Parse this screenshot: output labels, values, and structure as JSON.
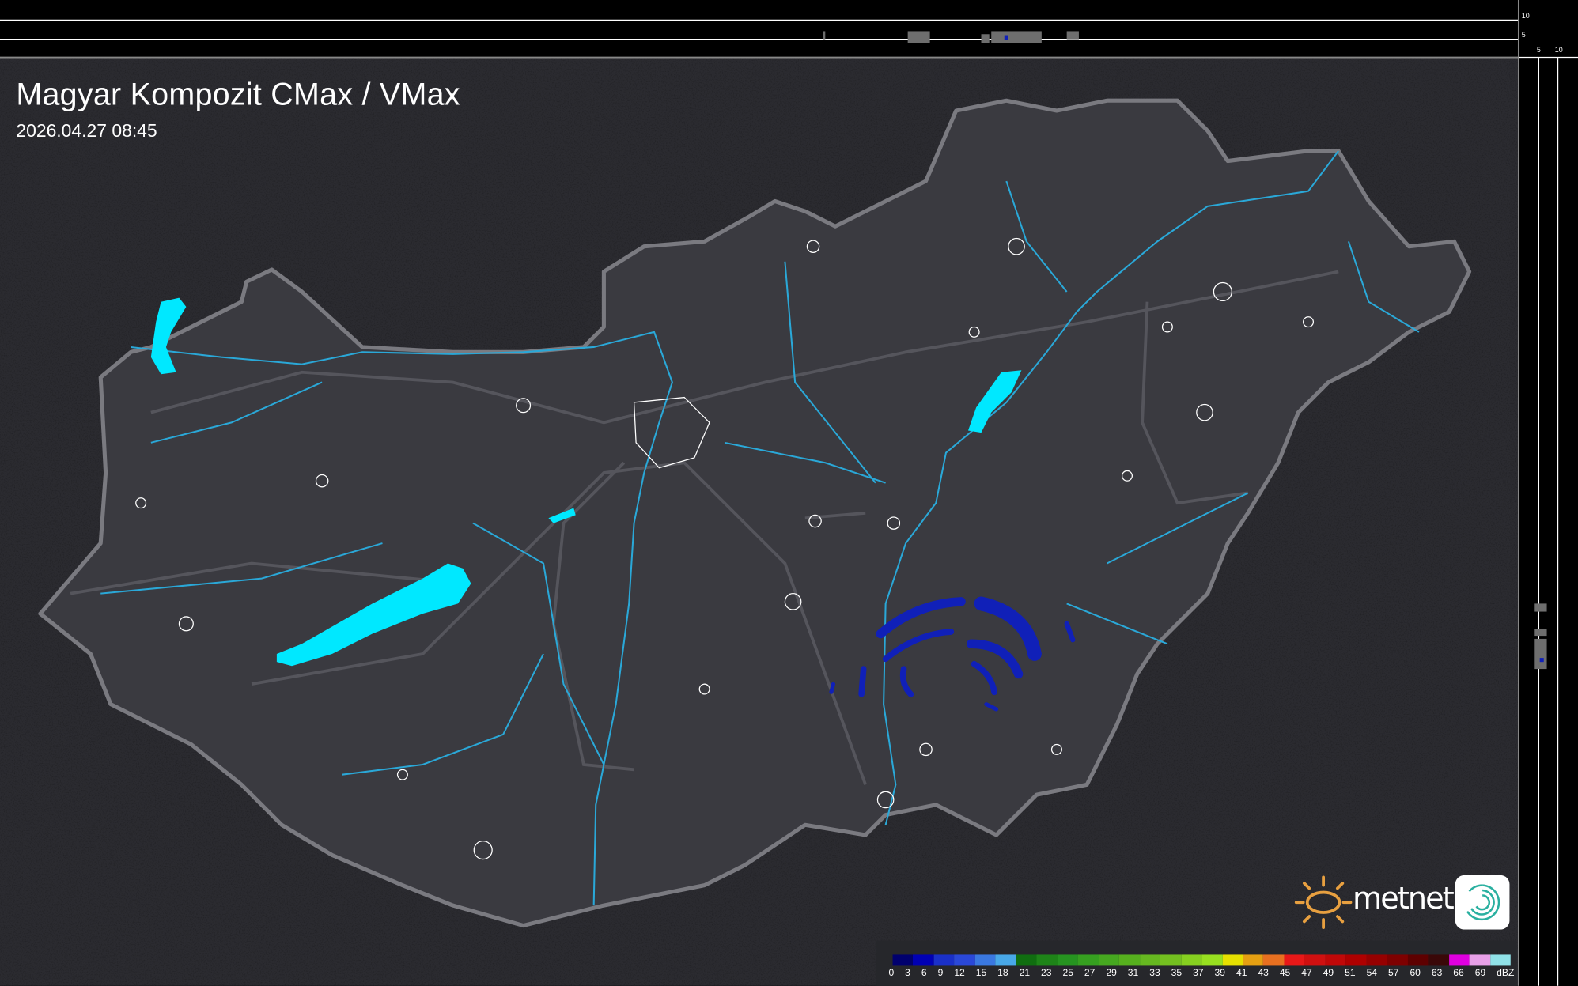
{
  "header": {
    "title": "Magyar Kompozit CMax / VMax",
    "timestamp": "2026.04.27 08:45"
  },
  "top_profile": {
    "axis_labels": [
      "10",
      "5"
    ]
  },
  "side_profile": {
    "axis_labels": [
      "5",
      "10"
    ]
  },
  "logo": {
    "text": "metnet"
  },
  "legend": {
    "unit": "dBZ",
    "labels": [
      "0",
      "3",
      "6",
      "9",
      "12",
      "15",
      "18",
      "21",
      "23",
      "25",
      "27",
      "29",
      "31",
      "33",
      "35",
      "37",
      "39",
      "41",
      "43",
      "45",
      "47",
      "49",
      "51",
      "54",
      "57",
      "60",
      "63",
      "66",
      "69"
    ],
    "colors": [
      "#00006e",
      "#0000b4",
      "#1a30c8",
      "#2a48d8",
      "#3a78e0",
      "#48a8e8",
      "#106e10",
      "#1e8418",
      "#269420",
      "#36a020",
      "#46a820",
      "#56b01e",
      "#66b820",
      "#74c020",
      "#86d020",
      "#98e020",
      "#e6e000",
      "#e6a012",
      "#e87020",
      "#e81818",
      "#d01010",
      "#c00808",
      "#ae0000",
      "#960000",
      "#7e0000",
      "#5e0000",
      "#3a0808",
      "#e000e0",
      "#e8a0e8",
      "#90e2e8"
    ]
  },
  "colors": {
    "background": "#2b2b30",
    "country_fill": "#3a3a40",
    "border": "#7a7a80",
    "rivers": "#2aa8d8",
    "lakes": "#00e8ff",
    "radar_echo": "#1020b8"
  }
}
